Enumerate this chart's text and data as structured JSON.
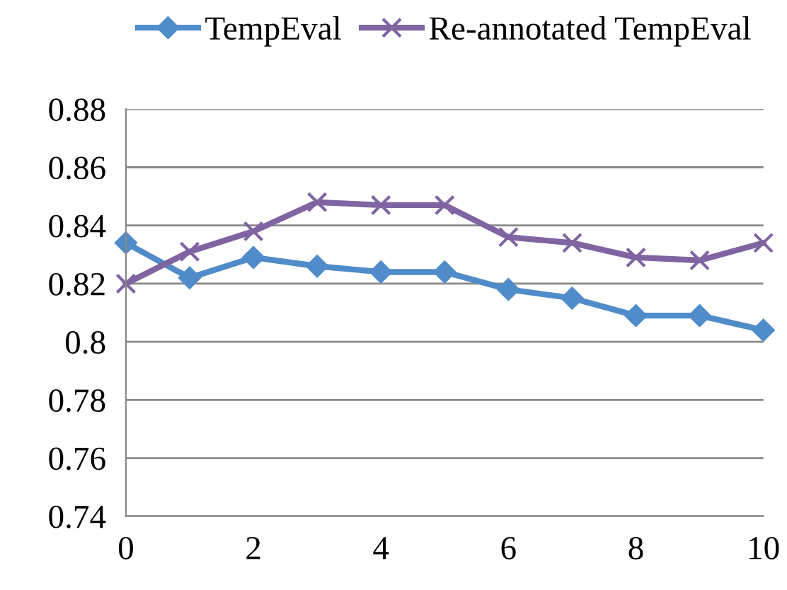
{
  "chart_data": {
    "type": "line",
    "x": [
      0,
      1,
      2,
      3,
      4,
      5,
      6,
      7,
      8,
      9,
      10
    ],
    "series": [
      {
        "name": "TempEval",
        "color": "#4f8cc9",
        "marker": "diamond",
        "values": [
          0.834,
          0.822,
          0.829,
          0.826,
          0.824,
          0.824,
          0.818,
          0.815,
          0.809,
          0.809,
          0.804
        ]
      },
      {
        "name": "Re-annotated TempEval",
        "color": "#8064a2",
        "marker": "cross",
        "values": [
          0.82,
          0.831,
          0.838,
          0.848,
          0.847,
          0.847,
          0.836,
          0.834,
          0.829,
          0.828,
          0.834
        ]
      }
    ],
    "xlim": [
      0,
      10
    ],
    "xticks": [
      0,
      2,
      4,
      6,
      8,
      10
    ],
    "ylim": [
      0.74,
      0.88
    ],
    "yticks": [
      0.74,
      0.76,
      0.78,
      0.8,
      0.82,
      0.84,
      0.86,
      0.88
    ],
    "grid": "y",
    "legend": "top"
  }
}
